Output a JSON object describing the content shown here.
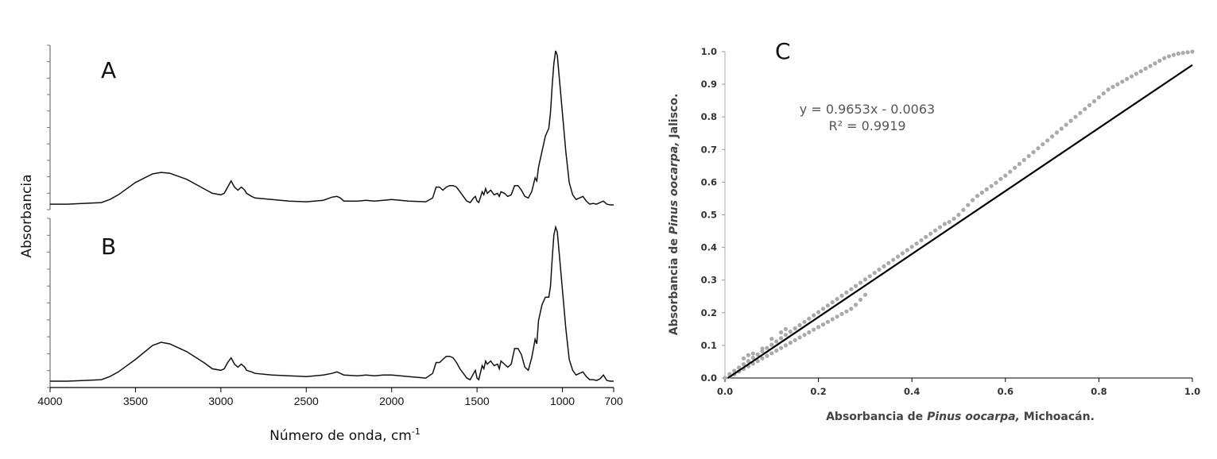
{
  "chart_data": [
    {
      "type": "line",
      "panels": [
        {
          "label": "A",
          "series": [
            {
              "x": [
                4000,
                3900,
                3800,
                3700,
                3650,
                3600,
                3500,
                3400,
                3350,
                3300,
                3200,
                3100,
                3050,
                3000,
                2980,
                2960,
                2940,
                2920,
                2900,
                2880,
                2860,
                2850,
                2820,
                2800,
                2700,
                2600,
                2500,
                2400,
                2350,
                2320,
                2300,
                2280,
                2200,
                2150,
                2100,
                2050,
                2000,
                1900,
                1800,
                1760,
                1740,
                1720,
                1700,
                1680,
                1660,
                1640,
                1620,
                1600,
                1580,
                1560,
                1540,
                1520,
                1510,
                1500,
                1490,
                1470,
                1460,
                1450,
                1440,
                1430,
                1420,
                1400,
                1380,
                1370,
                1360,
                1340,
                1320,
                1300,
                1280,
                1260,
                1240,
                1220,
                1200,
                1180,
                1160,
                1150,
                1140,
                1120,
                1100,
                1080,
                1070,
                1060,
                1050,
                1040,
                1030,
                1020,
                1000,
                980,
                960,
                940,
                920,
                900,
                880,
                860,
                840,
                820,
                800,
                780,
                760,
                740,
                720,
                700
              ],
              "y": [
                0.01,
                0.01,
                0.015,
                0.02,
                0.04,
                0.07,
                0.15,
                0.205,
                0.215,
                0.21,
                0.17,
                0.11,
                0.08,
                0.07,
                0.08,
                0.12,
                0.16,
                0.12,
                0.1,
                0.12,
                0.1,
                0.08,
                0.06,
                0.05,
                0.04,
                0.03,
                0.025,
                0.035,
                0.055,
                0.06,
                0.05,
                0.03,
                0.03,
                0.035,
                0.03,
                0.035,
                0.04,
                0.03,
                0.025,
                0.05,
                0.12,
                0.12,
                0.1,
                0.12,
                0.13,
                0.13,
                0.12,
                0.09,
                0.06,
                0.03,
                0.02,
                0.05,
                0.06,
                0.03,
                0.02,
                0.09,
                0.07,
                0.11,
                0.08,
                0.09,
                0.1,
                0.07,
                0.08,
                0.06,
                0.09,
                0.08,
                0.06,
                0.07,
                0.13,
                0.13,
                0.1,
                0.06,
                0.05,
                0.09,
                0.18,
                0.16,
                0.25,
                0.35,
                0.45,
                0.5,
                0.6,
                0.78,
                0.92,
                1.0,
                0.97,
                0.85,
                0.6,
                0.35,
                0.15,
                0.07,
                0.04,
                0.05,
                0.06,
                0.03,
                0.01,
                0.015,
                0.01,
                0.02,
                0.03,
                0.01,
                0.005,
                0.005
              ]
            }
          ]
        },
        {
          "label": "B",
          "series": [
            {
              "x": [
                4000,
                3900,
                3800,
                3700,
                3650,
                3600,
                3500,
                3400,
                3350,
                3300,
                3200,
                3100,
                3050,
                3000,
                2980,
                2960,
                2940,
                2920,
                2900,
                2880,
                2860,
                2850,
                2820,
                2800,
                2700,
                2600,
                2500,
                2400,
                2350,
                2320,
                2300,
                2280,
                2200,
                2150,
                2100,
                2050,
                2000,
                1900,
                1800,
                1760,
                1740,
                1720,
                1700,
                1680,
                1660,
                1640,
                1620,
                1600,
                1580,
                1560,
                1540,
                1520,
                1510,
                1500,
                1490,
                1470,
                1460,
                1450,
                1440,
                1430,
                1420,
                1400,
                1380,
                1370,
                1360,
                1340,
                1320,
                1300,
                1280,
                1260,
                1240,
                1220,
                1200,
                1180,
                1160,
                1150,
                1140,
                1120,
                1100,
                1080,
                1070,
                1060,
                1050,
                1040,
                1030,
                1020,
                1000,
                980,
                960,
                940,
                920,
                900,
                880,
                860,
                840,
                820,
                800,
                780,
                760,
                740,
                720,
                700
              ],
              "y": [
                0.01,
                0.01,
                0.015,
                0.02,
                0.04,
                0.07,
                0.15,
                0.24,
                0.26,
                0.25,
                0.2,
                0.13,
                0.09,
                0.08,
                0.09,
                0.13,
                0.16,
                0.12,
                0.1,
                0.12,
                0.1,
                0.08,
                0.07,
                0.06,
                0.05,
                0.045,
                0.04,
                0.05,
                0.06,
                0.07,
                0.06,
                0.05,
                0.045,
                0.05,
                0.045,
                0.05,
                0.05,
                0.04,
                0.03,
                0.06,
                0.13,
                0.13,
                0.15,
                0.17,
                0.17,
                0.16,
                0.13,
                0.09,
                0.06,
                0.03,
                0.02,
                0.06,
                0.08,
                0.03,
                0.02,
                0.11,
                0.09,
                0.14,
                0.12,
                0.13,
                0.14,
                0.11,
                0.12,
                0.09,
                0.14,
                0.12,
                0.1,
                0.12,
                0.22,
                0.22,
                0.18,
                0.1,
                0.08,
                0.16,
                0.28,
                0.25,
                0.4,
                0.5,
                0.55,
                0.55,
                0.62,
                0.8,
                0.95,
                1.0,
                0.97,
                0.85,
                0.6,
                0.35,
                0.15,
                0.08,
                0.05,
                0.06,
                0.07,
                0.04,
                0.02,
                0.02,
                0.015,
                0.025,
                0.05,
                0.015,
                0.01,
                0.01
              ]
            }
          ]
        }
      ],
      "xlim": [
        4000,
        700
      ],
      "x_ticks": [
        4000,
        3500,
        3000,
        2500,
        2000,
        1500,
        1000,
        700
      ],
      "xlabel": "Número de onda, cm",
      "xlabel_sup": "-1",
      "ylabel": "Absorbancia"
    },
    {
      "type": "scatter",
      "label": "C",
      "xlim": [
        0.0,
        1.0
      ],
      "ylim": [
        0.0,
        1.0
      ],
      "x_ticks": [
        "0.0",
        "0.2",
        "0.4",
        "0.6",
        "0.8",
        "1.0"
      ],
      "y_ticks": [
        "0.0",
        "0.1",
        "0.2",
        "0.3",
        "0.4",
        "0.5",
        "0.6",
        "0.7",
        "0.8",
        "0.9",
        "1.0"
      ],
      "xlabel_pre": "Absorbancia de ",
      "xlabel_em": "Pinus oocarpa,",
      "xlabel_post": " Michoacán.",
      "ylabel_pre": "Absorbancia de ",
      "ylabel_em": "Pinus oocarpa,",
      "ylabel_post": " Jalisco.",
      "equation": "y = 0.9653x - 0.0063",
      "r_squared": "R² = 0.9919",
      "trendline": {
        "slope": 0.9653,
        "intercept": -0.0063
      },
      "point_color": "#aaaaaa",
      "line_color": "#000000",
      "points_x": [
        0.0,
        0.01,
        0.02,
        0.03,
        0.04,
        0.05,
        0.06,
        0.07,
        0.08,
        0.09,
        0.1,
        0.11,
        0.12,
        0.13,
        0.14,
        0.15,
        0.16,
        0.17,
        0.18,
        0.19,
        0.2,
        0.21,
        0.22,
        0.23,
        0.24,
        0.25,
        0.26,
        0.27,
        0.28,
        0.29,
        0.3,
        0.01,
        0.02,
        0.03,
        0.04,
        0.05,
        0.06,
        0.07,
        0.08,
        0.09,
        0.1,
        0.11,
        0.12,
        0.13,
        0.14,
        0.15,
        0.16,
        0.17,
        0.18,
        0.19,
        0.2,
        0.21,
        0.22,
        0.23,
        0.24,
        0.25,
        0.26,
        0.27,
        0.28,
        0.29,
        0.3,
        0.31,
        0.32,
        0.33,
        0.34,
        0.35,
        0.36,
        0.37,
        0.38,
        0.39,
        0.4,
        0.41,
        0.42,
        0.43,
        0.44,
        0.45,
        0.46,
        0.47,
        0.48,
        0.49,
        0.5,
        0.51,
        0.52,
        0.53,
        0.54,
        0.55,
        0.56,
        0.57,
        0.58,
        0.59,
        0.6,
        0.61,
        0.62,
        0.63,
        0.64,
        0.65,
        0.66,
        0.67,
        0.68,
        0.69,
        0.7,
        0.71,
        0.72,
        0.73,
        0.74,
        0.75,
        0.76,
        0.77,
        0.78,
        0.79,
        0.8,
        0.81,
        0.82,
        0.83,
        0.84,
        0.85,
        0.86,
        0.87,
        0.88,
        0.89,
        0.9,
        0.91,
        0.92,
        0.93,
        0.94,
        0.95,
        0.96,
        0.97,
        0.98,
        0.99,
        1.0,
        0.04,
        0.05,
        0.06,
        0.08,
        0.1,
        0.12,
        0.13
      ],
      "points_y": [
        0.0,
        0.005,
        0.012,
        0.02,
        0.028,
        0.036,
        0.044,
        0.052,
        0.06,
        0.068,
        0.076,
        0.084,
        0.092,
        0.1,
        0.108,
        0.116,
        0.124,
        0.132,
        0.14,
        0.148,
        0.156,
        0.164,
        0.172,
        0.18,
        0.188,
        0.196,
        0.204,
        0.212,
        0.224,
        0.24,
        0.255,
        0.012,
        0.022,
        0.032,
        0.042,
        0.052,
        0.062,
        0.072,
        0.082,
        0.092,
        0.102,
        0.112,
        0.122,
        0.132,
        0.142,
        0.152,
        0.162,
        0.172,
        0.182,
        0.192,
        0.202,
        0.212,
        0.222,
        0.232,
        0.242,
        0.252,
        0.262,
        0.272,
        0.282,
        0.292,
        0.302,
        0.312,
        0.322,
        0.332,
        0.342,
        0.352,
        0.362,
        0.372,
        0.382,
        0.392,
        0.402,
        0.412,
        0.422,
        0.432,
        0.442,
        0.452,
        0.462,
        0.472,
        0.478,
        0.488,
        0.5,
        0.515,
        0.53,
        0.545,
        0.558,
        0.568,
        0.578,
        0.588,
        0.598,
        0.61,
        0.62,
        0.632,
        0.644,
        0.656,
        0.668,
        0.68,
        0.692,
        0.704,
        0.716,
        0.728,
        0.74,
        0.752,
        0.764,
        0.776,
        0.788,
        0.8,
        0.812,
        0.824,
        0.836,
        0.848,
        0.86,
        0.872,
        0.884,
        0.892,
        0.9,
        0.908,
        0.916,
        0.924,
        0.932,
        0.94,
        0.948,
        0.956,
        0.964,
        0.972,
        0.98,
        0.986,
        0.99,
        0.994,
        0.996,
        0.998,
        1.0,
        0.06,
        0.07,
        0.075,
        0.09,
        0.12,
        0.14,
        0.15
      ]
    }
  ]
}
